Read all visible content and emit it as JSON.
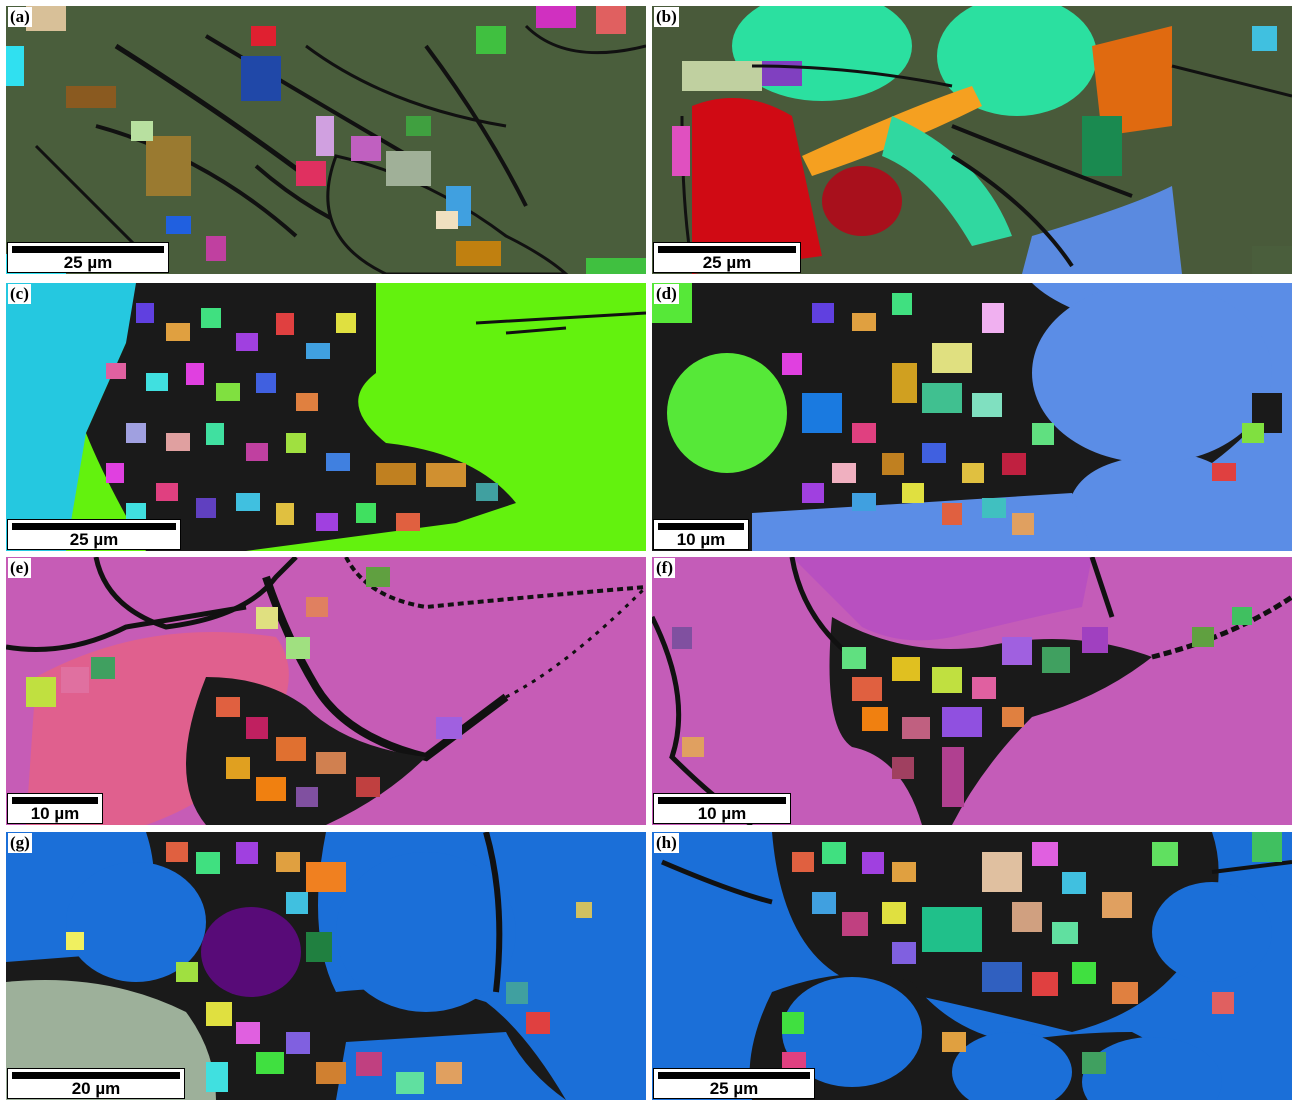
{
  "panels": [
    {
      "label": "(a)",
      "scale": "25 µm",
      "matrix": "#4a5e3c",
      "flakes": "#1a1a1a"
    },
    {
      "label": "(b)",
      "scale": "25 µm",
      "matrix": "#495a3a",
      "flakes": "#2be0a0"
    },
    {
      "label": "(c)",
      "scale": "25 µm",
      "matrix": "#63f20e",
      "flakes": "#25c8e0"
    },
    {
      "label": "(d)",
      "scale": "10 µm",
      "matrix": "#5b8de6",
      "flakes": "#56e838"
    },
    {
      "label": "(e)",
      "scale": "10 µm",
      "matrix": "#c65cb6",
      "flakes": "#e0608e"
    },
    {
      "label": "(f)",
      "scale": "10 µm",
      "matrix": "#c45cb8",
      "flakes": "#b850c0"
    },
    {
      "label": "(g)",
      "scale": "20 µm",
      "matrix": "#1b6fd8",
      "flakes": "#9db09a"
    },
    {
      "label": "(h)",
      "scale": "25 µm",
      "matrix": "#1b6fd8",
      "flakes": "#1a6fd6"
    }
  ]
}
